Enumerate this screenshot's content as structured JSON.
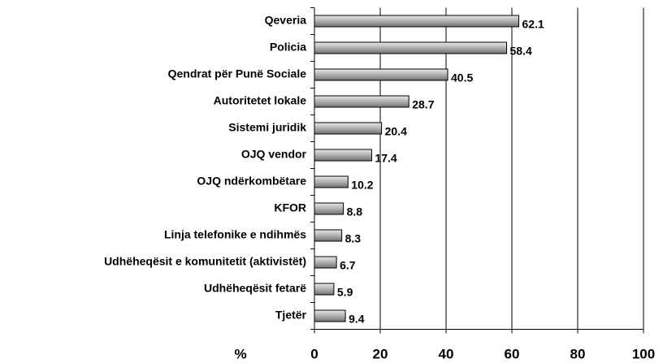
{
  "chart_data": {
    "type": "bar",
    "orientation": "horizontal",
    "categories": [
      "Qeveria",
      "Policia",
      "Qendrat për Punë Sociale",
      "Autoritetet lokale",
      "Sistemi juridik",
      "OJQ vendor",
      "OJQ ndërkombëtare",
      "KFOR",
      "Linja telefonike e ndihmës",
      "Udhëheqësit e komunitetit (aktivistët)",
      "Udhëheqësit fetarë",
      "Tjetër"
    ],
    "values": [
      62.1,
      58.4,
      40.5,
      28.7,
      20.4,
      17.4,
      10.2,
      8.8,
      8.3,
      6.7,
      5.9,
      9.4
    ],
    "xlabel": "%",
    "xlim": [
      0,
      100
    ],
    "xticks": [
      0,
      20,
      40,
      60,
      80,
      100
    ],
    "grid": true,
    "color": "#a0a0a0"
  }
}
